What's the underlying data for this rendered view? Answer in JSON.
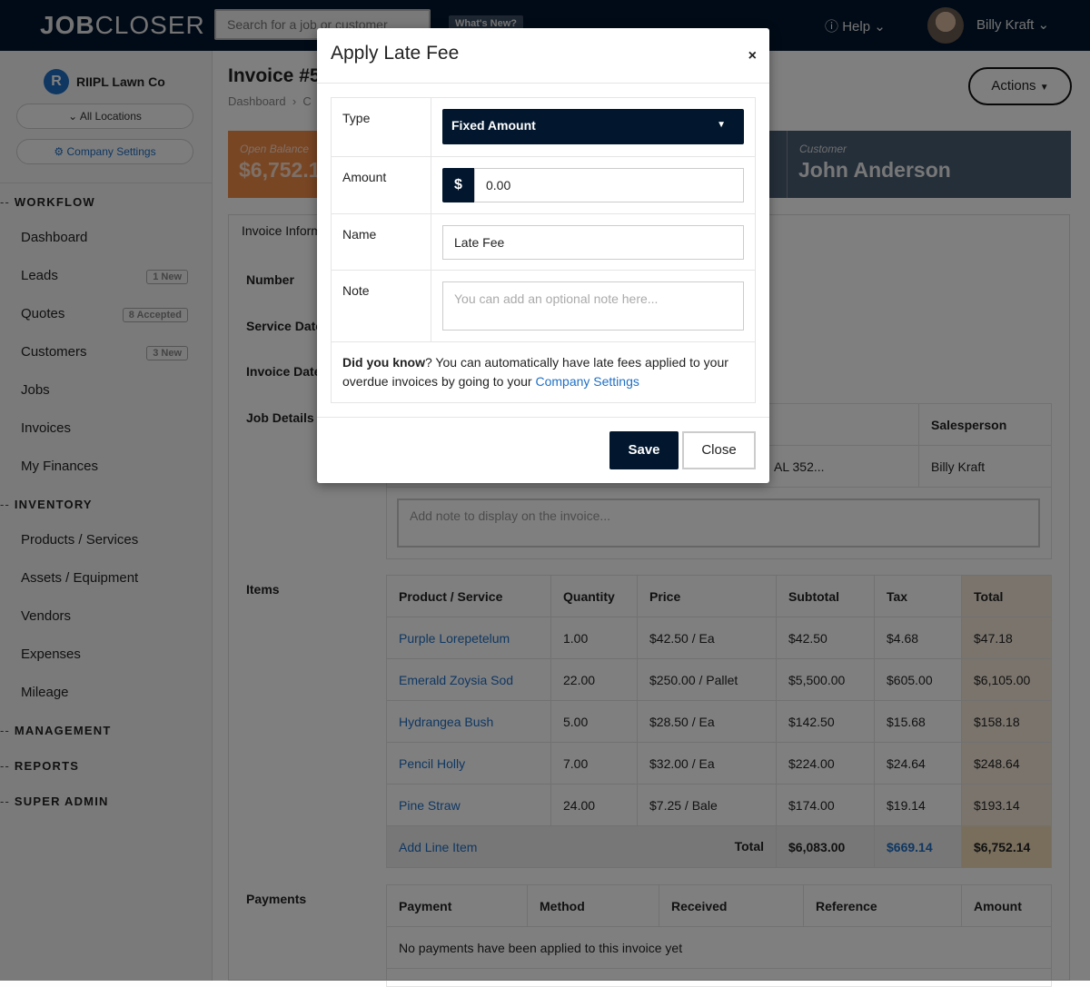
{
  "header": {
    "logo_bold": "JOB",
    "logo_rest": "CLOSER",
    "search_placeholder": "Search for a job or customer",
    "whats_new": "What's New?",
    "help": "Help",
    "user_name": "Billy Kraft"
  },
  "sidebar": {
    "org": "RIIPL Lawn Co",
    "org_initial": "R",
    "locations": "All Locations",
    "company_settings": "Company Settings",
    "sections": [
      {
        "title": "WORKFLOW",
        "items": [
          {
            "label": "Dashboard"
          },
          {
            "label": "Leads",
            "badge": "1 New"
          },
          {
            "label": "Quotes",
            "badge": "8 Accepted"
          },
          {
            "label": "Customers",
            "badge": "3 New"
          },
          {
            "label": "Jobs"
          },
          {
            "label": "Invoices"
          },
          {
            "label": "My Finances"
          }
        ]
      },
      {
        "title": "INVENTORY",
        "items": [
          {
            "label": "Products / Services"
          },
          {
            "label": "Assets / Equipment"
          },
          {
            "label": "Vendors"
          },
          {
            "label": "Expenses"
          },
          {
            "label": "Mileage"
          }
        ]
      },
      {
        "title": "MANAGEMENT"
      },
      {
        "title": "REPORTS"
      },
      {
        "title": "SUPER ADMIN"
      }
    ]
  },
  "page": {
    "title": "Invoice #5",
    "breadcrumb": "Dashboard",
    "breadcrumb_next": "C",
    "actions": "Actions",
    "open_balance_label": "Open Balance",
    "open_balance": "$6,752.1",
    "customer_label": "Customer",
    "customer": "John Anderson",
    "tab": "Invoice Information",
    "labels": {
      "number": "Number",
      "service_date": "Service Date",
      "invoice_date": "Invoice Date",
      "job_details": "Job Details",
      "items": "Items",
      "payments": "Payments"
    },
    "job": {
      "salesperson_header": "Salesperson",
      "address": "AL 352...",
      "salesperson": "Billy Kraft",
      "note_placeholder": "Add note to display on the invoice..."
    },
    "items": {
      "headers": [
        "Product / Service",
        "Quantity",
        "Price",
        "Subtotal",
        "Tax",
        "Total"
      ],
      "rows": [
        [
          "Purple Lorepetelum",
          "1.00",
          "$42.50 / Ea",
          "$42.50",
          "$4.68",
          "$47.18"
        ],
        [
          "Emerald Zoysia Sod",
          "22.00",
          "$250.00 / Pallet",
          "$5,500.00",
          "$605.00",
          "$6,105.00"
        ],
        [
          "Hydrangea Bush",
          "5.00",
          "$28.50 / Ea",
          "$142.50",
          "$15.68",
          "$158.18"
        ],
        [
          "Pencil Holly",
          "7.00",
          "$32.00 / Ea",
          "$224.00",
          "$24.64",
          "$248.64"
        ],
        [
          "Pine Straw",
          "24.00",
          "$7.25 / Bale",
          "$174.00",
          "$19.14",
          "$193.14"
        ]
      ],
      "add_line": "Add Line Item",
      "total_label": "Total",
      "subtotal": "$6,083.00",
      "tax": "$669.14",
      "total": "$6,752.14"
    },
    "payments": {
      "headers": [
        "Payment",
        "Method",
        "Received",
        "Reference",
        "Amount"
      ],
      "empty": "No payments have been applied to this invoice yet"
    }
  },
  "modal": {
    "title": "Apply Late Fee",
    "close_x": "×",
    "type_label": "Type",
    "type_value": "Fixed Amount",
    "amount_label": "Amount",
    "currency": "$",
    "amount": "0.00",
    "name_label": "Name",
    "name": "Late Fee",
    "note_label": "Note",
    "note_placeholder": "You can add an optional note here...",
    "dyk_bold": "Did you know",
    "dyk_text": "? You can automatically have late fees applied to your overdue invoices by going to your ",
    "dyk_link": "Company Settings",
    "save": "Save",
    "close": "Close"
  },
  "colors": {
    "navy": "#02172e",
    "accent_blue": "#1f6fc4",
    "balance_orange": "#f28c48",
    "customer_slate": "#4a5e74"
  }
}
